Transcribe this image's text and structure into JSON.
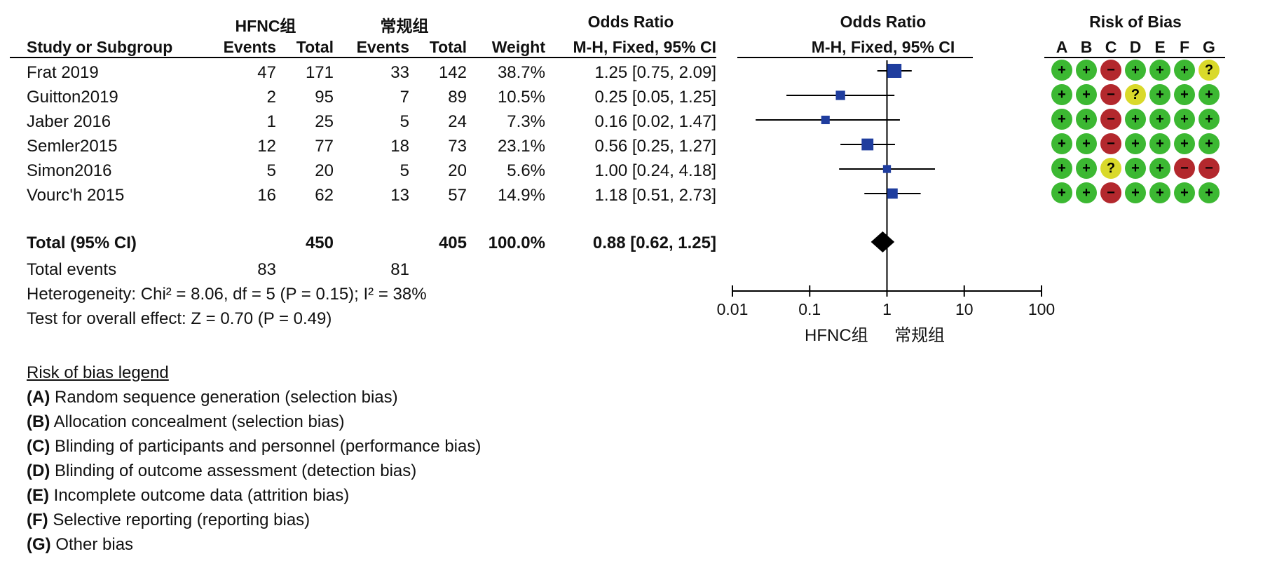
{
  "table": {
    "group1_name": "HFNC组",
    "group2_name": "常规组",
    "or_title": "Odds Ratio",
    "col_study": "Study or Subgroup",
    "col_events": "Events",
    "col_total": "Total",
    "col_weight": "Weight",
    "col_method": "M-H, Fixed, 95% CI",
    "rows": [
      {
        "study": "Frat 2019",
        "e1": "47",
        "t1": "171",
        "e2": "33",
        "t2": "142",
        "weight": "38.7%",
        "ci": "1.25 [0.75, 2.09]"
      },
      {
        "study": "Guitton2019",
        "e1": "2",
        "t1": "95",
        "e2": "7",
        "t2": "89",
        "weight": "10.5%",
        "ci": "0.25 [0.05, 1.25]"
      },
      {
        "study": "Jaber 2016",
        "e1": "1",
        "t1": "25",
        "e2": "5",
        "t2": "24",
        "weight": "7.3%",
        "ci": "0.16 [0.02, 1.47]"
      },
      {
        "study": "Semler2015",
        "e1": "12",
        "t1": "77",
        "e2": "18",
        "t2": "73",
        "weight": "23.1%",
        "ci": "0.56 [0.25, 1.27]"
      },
      {
        "study": "Simon2016",
        "e1": "5",
        "t1": "20",
        "e2": "5",
        "t2": "20",
        "weight": "5.6%",
        "ci": "1.00 [0.24, 4.18]"
      },
      {
        "study": "Vourc'h 2015",
        "e1": "16",
        "t1": "62",
        "e2": "13",
        "t2": "57",
        "weight": "14.9%",
        "ci": "1.18 [0.51, 2.73]"
      }
    ],
    "total_label": "Total (95% CI)",
    "total_t1": "450",
    "total_t2": "405",
    "total_weight": "100.0%",
    "total_ci": "0.88 [0.62, 1.25]",
    "events_label": "Total events",
    "events_e1": "83",
    "events_e2": "81",
    "heterogeneity": "Heterogeneity: Chi² = 8.06, df = 5 (P = 0.15); I² = 38%",
    "overall": "Test for overall effect: Z = 0.70 (P = 0.49)"
  },
  "rob": {
    "title": "Risk of Bias",
    "columns": [
      "A",
      "B",
      "C",
      "D",
      "E",
      "F",
      "G"
    ],
    "colors": {
      "low": "#3cb832",
      "high": "#b3282d",
      "unclear": "#d9d92a"
    },
    "symbols": {
      "low": "+",
      "high": "−",
      "unclear": "?"
    },
    "ratings": [
      [
        "low",
        "low",
        "high",
        "low",
        "low",
        "low",
        "unclear"
      ],
      [
        "low",
        "low",
        "high",
        "unclear",
        "low",
        "low",
        "low"
      ],
      [
        "low",
        "low",
        "high",
        "low",
        "low",
        "low",
        "low"
      ],
      [
        "low",
        "low",
        "high",
        "low",
        "low",
        "low",
        "low"
      ],
      [
        "low",
        "low",
        "unclear",
        "low",
        "low",
        "high",
        "high"
      ],
      [
        "low",
        "low",
        "high",
        "low",
        "low",
        "low",
        "low"
      ]
    ],
    "legend_title": "Risk of bias legend",
    "legend": [
      {
        "key": "(A)",
        "text": " Random sequence generation (selection bias)"
      },
      {
        "key": "(B)",
        "text": " Allocation concealment (selection bias)"
      },
      {
        "key": "(C)",
        "text": " Blinding of participants and personnel (performance bias)"
      },
      {
        "key": "(D)",
        "text": " Blinding of outcome assessment (detection bias)"
      },
      {
        "key": "(E)",
        "text": " Incomplete outcome data (attrition bias)"
      },
      {
        "key": "(F)",
        "text": " Selective reporting (reporting bias)"
      },
      {
        "key": "(G)",
        "text": " Other bias"
      }
    ]
  },
  "chart_data": {
    "type": "scatter",
    "title": "Odds Ratio",
    "subtitle": "M-H, Fixed, 95% CI",
    "scale": "log",
    "xlim": [
      0.01,
      100
    ],
    "ticks": [
      0.01,
      0.1,
      1,
      10,
      100
    ],
    "tick_labels": [
      "0.01",
      "0.1",
      "1",
      "10",
      "100"
    ],
    "xlabel_left": "HFNC组",
    "xlabel_right": "常规组",
    "square_color": "#1f3d9e",
    "diamond_color": "#000000",
    "studies": [
      {
        "or": 1.25,
        "lo": 0.75,
        "hi": 2.09,
        "weight": 38.7
      },
      {
        "or": 0.25,
        "lo": 0.05,
        "hi": 1.25,
        "weight": 10.5
      },
      {
        "or": 0.16,
        "lo": 0.02,
        "hi": 1.47,
        "weight": 7.3
      },
      {
        "or": 0.56,
        "lo": 0.25,
        "hi": 1.27,
        "weight": 23.1
      },
      {
        "or": 1.0,
        "lo": 0.24,
        "hi": 4.18,
        "weight": 5.6
      },
      {
        "or": 1.18,
        "lo": 0.51,
        "hi": 2.73,
        "weight": 14.9
      }
    ],
    "pooled": {
      "or": 0.88,
      "lo": 0.62,
      "hi": 1.25
    }
  }
}
